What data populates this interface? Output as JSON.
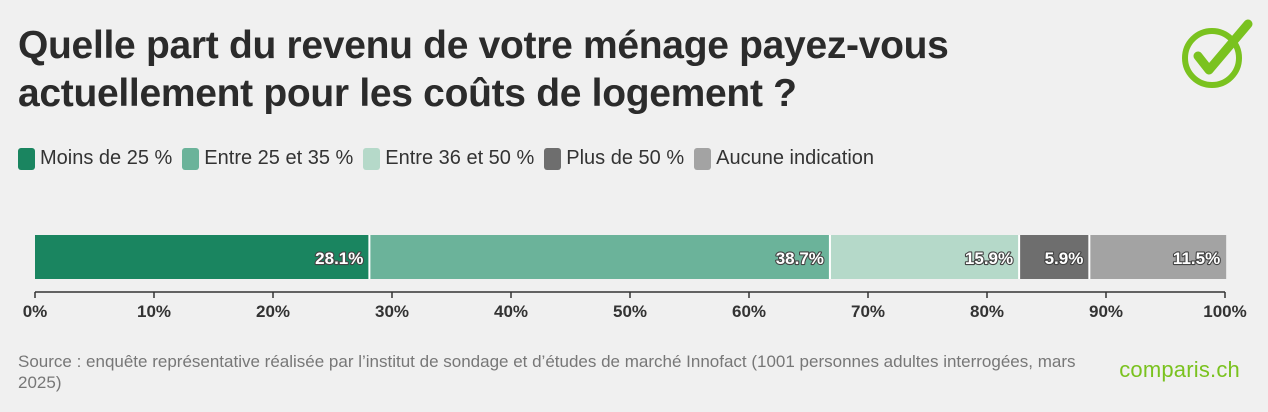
{
  "header": {
    "title_line1": "Quelle part du revenu de votre ménage payez-vous",
    "title_line2": "actuellement pour les coûts de logement ?"
  },
  "brand": {
    "logo_icon": "checkmark-circle-icon",
    "name": "comparis.ch",
    "color": "#7ac21f"
  },
  "legend": [
    {
      "label": "Moins de 25 %",
      "color": "#1a8560"
    },
    {
      "label": "Entre 25 et 35 %",
      "color": "#6bb39a"
    },
    {
      "label": "Entre 36 et 50 %",
      "color": "#b5d9c9"
    },
    {
      "label": "Plus de 50 %",
      "color": "#6e6e6e"
    },
    {
      "label": "Aucune indication",
      "color": "#a3a3a3"
    }
  ],
  "chart_data": {
    "type": "bar",
    "orientation": "horizontal-stacked",
    "categories": [
      ""
    ],
    "series": [
      {
        "name": "Moins de 25 %",
        "values": [
          28.1
        ],
        "label": "28.1%",
        "color": "#1a8560"
      },
      {
        "name": "Entre 25 et 35 %",
        "values": [
          38.7
        ],
        "label": "38.7%",
        "color": "#6bb39a"
      },
      {
        "name": "Entre 36 et 50 %",
        "values": [
          15.9
        ],
        "label": "15.9%",
        "color": "#b5d9c9"
      },
      {
        "name": "Plus de 50 %",
        "values": [
          5.9
        ],
        "label": "5.9%",
        "color": "#6e6e6e"
      },
      {
        "name": "Aucune indication",
        "values": [
          11.5
        ],
        "label": "11.5%",
        "color": "#a3a3a3"
      }
    ],
    "xlim": [
      0,
      100
    ],
    "x_ticks": [
      "0%",
      "10%",
      "20%",
      "30%",
      "40%",
      "50%",
      "60%",
      "70%",
      "80%",
      "90%",
      "100%"
    ],
    "grid": false,
    "legend_position": "top"
  },
  "footer": {
    "source": "Source : enquête représentative réalisée par l’institut de sondage et d’études de marché Innofact (1001 personnes adultes interrogées, mars 2025)"
  }
}
